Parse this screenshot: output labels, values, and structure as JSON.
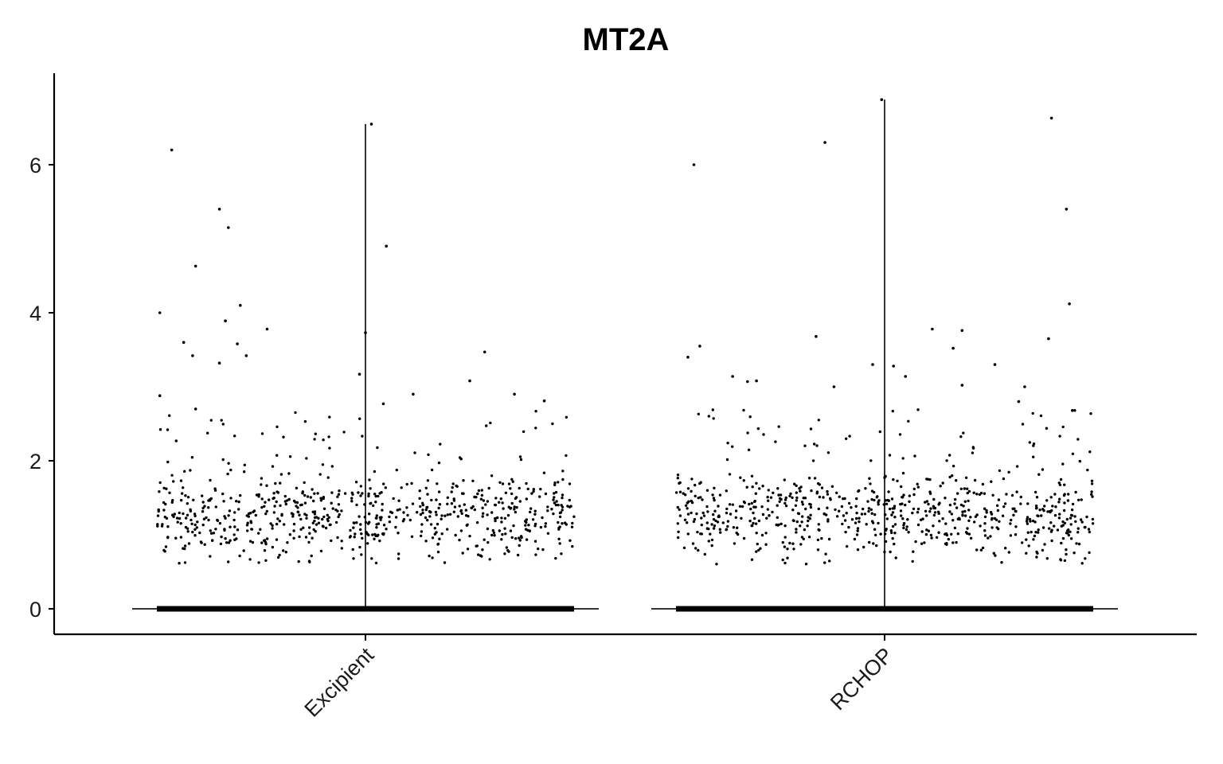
{
  "chart_data": {
    "type": "violin",
    "title": "MT2A",
    "xlabel": "",
    "ylabel": "",
    "categories": [
      "Excipient",
      "RCHOP"
    ],
    "ylim": [
      -0.35,
      7.25
    ],
    "y_ticks": [
      0,
      2,
      4,
      6
    ],
    "y_tick_labels": [
      "0",
      "2",
      "4",
      "6"
    ],
    "grid": false,
    "legend": "none",
    "groups": [
      {
        "name": "Excipient",
        "violin_max": 6.55,
        "dense_range": [
          0.6,
          2.1
        ],
        "outliers": [
          {
            "x": -0.65,
            "y": 6.2
          },
          {
            "x": 0.02,
            "y": 6.55
          },
          {
            "x": -0.57,
            "y": 4.63
          },
          {
            "x": -0.49,
            "y": 5.4
          },
          {
            "x": -0.46,
            "y": 5.15
          },
          {
            "x": 0.07,
            "y": 4.9
          },
          {
            "x": -0.69,
            "y": 4.0
          },
          {
            "x": -0.42,
            "y": 4.1
          },
          {
            "x": -0.43,
            "y": 3.58
          },
          {
            "x": -0.61,
            "y": 3.6
          },
          {
            "x": -0.47,
            "y": 3.89
          },
          {
            "x": 0.0,
            "y": 3.73
          },
          {
            "x": -0.33,
            "y": 3.78
          },
          {
            "x": -0.58,
            "y": 3.42
          },
          {
            "x": -0.49,
            "y": 3.32
          },
          {
            "x": -0.4,
            "y": 3.42
          },
          {
            "x": 0.4,
            "y": 3.47
          },
          {
            "x": -0.02,
            "y": 3.17
          },
          {
            "x": -0.69,
            "y": 2.88
          },
          {
            "x": -0.57,
            "y": 2.7
          },
          {
            "x": 0.35,
            "y": 3.08
          },
          {
            "x": 0.06,
            "y": 2.77
          },
          {
            "x": 0.16,
            "y": 2.9
          },
          {
            "x": 0.5,
            "y": 2.9
          },
          {
            "x": 0.6,
            "y": 2.81
          }
        ]
      },
      {
        "name": "RCHOP",
        "violin_max": 6.88,
        "dense_range": [
          0.6,
          2.1
        ],
        "outliers": [
          {
            "x": -0.01,
            "y": 6.88
          },
          {
            "x": 0.56,
            "y": 6.63
          },
          {
            "x": -0.64,
            "y": 6.0
          },
          {
            "x": -0.2,
            "y": 6.3
          },
          {
            "x": 0.61,
            "y": 5.4
          },
          {
            "x": 0.62,
            "y": 4.12
          },
          {
            "x": -0.23,
            "y": 3.68
          },
          {
            "x": 0.55,
            "y": 3.65
          },
          {
            "x": 0.16,
            "y": 3.78
          },
          {
            "x": 0.26,
            "y": 3.76
          },
          {
            "x": 0.23,
            "y": 3.52
          },
          {
            "x": -0.62,
            "y": 3.55
          },
          {
            "x": -0.66,
            "y": 3.4
          },
          {
            "x": -0.51,
            "y": 3.14
          },
          {
            "x": -0.43,
            "y": 3.08
          },
          {
            "x": -0.04,
            "y": 3.3
          },
          {
            "x": 0.37,
            "y": 3.3
          },
          {
            "x": 0.03,
            "y": 3.28
          },
          {
            "x": -0.17,
            "y": 3.0
          },
          {
            "x": 0.07,
            "y": 3.14
          },
          {
            "x": 0.26,
            "y": 3.02
          },
          {
            "x": 0.47,
            "y": 3.0
          },
          {
            "x": 0.45,
            "y": 2.8
          },
          {
            "x": 0.63,
            "y": 2.68
          },
          {
            "x": -0.46,
            "y": 3.07
          }
        ]
      }
    ]
  }
}
